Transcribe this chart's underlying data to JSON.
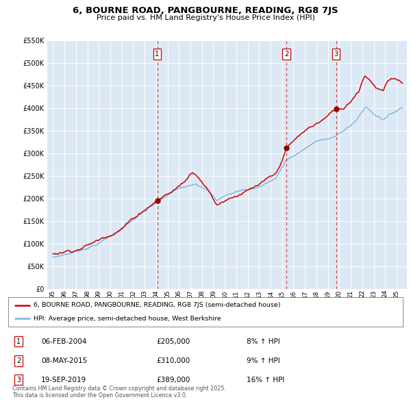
{
  "title": "6, BOURNE ROAD, PANGBOURNE, READING, RG8 7JS",
  "subtitle": "Price paid vs. HM Land Registry's House Price Index (HPI)",
  "background_color": "#ffffff",
  "plot_bg_color": "#dce9f5",
  "red_label": "6, BOURNE ROAD, PANGBOURNE, READING, RG8 7JS (semi-detached house)",
  "blue_label": "HPI: Average price, semi-detached house, West Berkshire",
  "footer": "Contains HM Land Registry data © Crown copyright and database right 2025.\nThis data is licensed under the Open Government Licence v3.0.",
  "sale_points": [
    {
      "num": 1,
      "date_x": 2004.1,
      "price": 205000,
      "label": "06-FEB-2004",
      "amount": "£205,000",
      "pct": "8% ↑ HPI"
    },
    {
      "num": 2,
      "date_x": 2015.37,
      "price": 310000,
      "label": "08-MAY-2015",
      "amount": "£310,000",
      "pct": "9% ↑ HPI"
    },
    {
      "num": 3,
      "date_x": 2019.72,
      "price": 389000,
      "label": "19-SEP-2019",
      "amount": "£389,000",
      "pct": "16% ↑ HPI"
    }
  ],
  "ylim": [
    0,
    550000
  ],
  "xlim": [
    1994.5,
    2025.9
  ],
  "yticks": [
    0,
    50000,
    100000,
    150000,
    200000,
    250000,
    300000,
    350000,
    400000,
    450000,
    500000,
    550000
  ],
  "xticks": [
    1995,
    1996,
    1997,
    1998,
    1999,
    2000,
    2001,
    2002,
    2003,
    2004,
    2005,
    2006,
    2007,
    2008,
    2009,
    2010,
    2011,
    2012,
    2013,
    2014,
    2015,
    2016,
    2017,
    2018,
    2019,
    2020,
    2021,
    2022,
    2023,
    2024,
    2025
  ]
}
